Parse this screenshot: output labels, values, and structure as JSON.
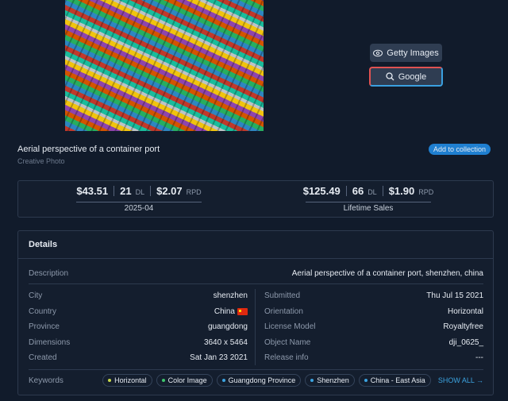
{
  "image": {
    "buttons": [
      "Getty Images",
      "Google"
    ]
  },
  "header": {
    "title": "Aerial perspective of a container port",
    "subtitle": "Creative Photo",
    "action": "Add to collection"
  },
  "stats": [
    {
      "revenue": "$43.51",
      "downloads": "21",
      "downloads_unit": "DL",
      "rpd": "$2.07",
      "rpd_unit": "RPD",
      "period": "2025-04"
    },
    {
      "revenue": "$125.49",
      "downloads": "66",
      "downloads_unit": "DL",
      "rpd": "$1.90",
      "rpd_unit": "RPD",
      "period": "Lifetime Sales"
    }
  ],
  "details": {
    "title": "Details",
    "description": {
      "label": "Description",
      "value": "Aerial perspective of a container port, shenzhen, china"
    },
    "left": [
      {
        "label": "City",
        "value": "shenzhen"
      },
      {
        "label": "Country",
        "value": "China"
      },
      {
        "label": "Province",
        "value": "guangdong"
      },
      {
        "label": "Dimensions",
        "value": "3640 x 5464"
      },
      {
        "label": "Created",
        "value": "Sat Jan 23 2021"
      }
    ],
    "right": [
      {
        "label": "Submitted",
        "value": "Thu Jul 15 2021"
      },
      {
        "label": "Orientation",
        "value": "Horizontal"
      },
      {
        "label": "License Model",
        "value": "Royaltyfree"
      },
      {
        "label": "Object Name",
        "value": "dji_0625_"
      },
      {
        "label": "Release info",
        "value": "---"
      }
    ],
    "keywords": {
      "label": "Keywords",
      "items": [
        {
          "text": "Horizontal",
          "color": "#c6d84a"
        },
        {
          "text": "Color Image",
          "color": "#3ec46d"
        },
        {
          "text": "Guangdong Province",
          "color": "#3ba3e0"
        },
        {
          "text": "Shenzhen",
          "color": "#3ba3e0"
        },
        {
          "text": "China - East Asia",
          "color": "#3ba3e0"
        }
      ],
      "more": "SHOW ALL →"
    }
  }
}
